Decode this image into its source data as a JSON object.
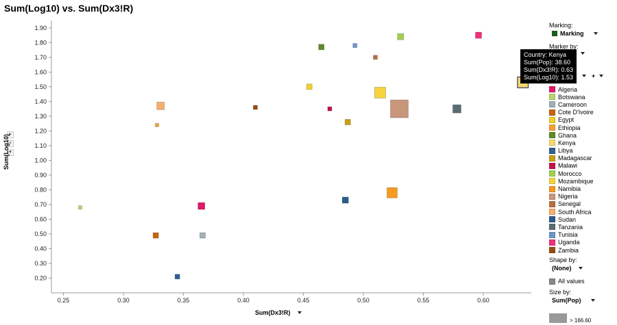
{
  "title": "Sum(Log10) vs. Sum(Dx3!R)",
  "y_axis_label": "Sum(Log10)",
  "x_axis_label": "Sum(Dx3!R)",
  "panel": {
    "marking_label": "Marking:",
    "marking_value": "Marking",
    "marking_color": "#1a5c1a",
    "marker_by_label": "Marker by:",
    "shape_by_label": "Shape by:",
    "shape_by_value": "(None)",
    "all_values_label": "All values",
    "size_by_label": "Size by:",
    "size_by_value": "Sum(Pop)",
    "size_range_label": "> 166.60"
  },
  "tooltip": {
    "country": "Country: Kenya",
    "pop": "Sum(Pop): 38.60",
    "dx": "Sum(Dx3!R): 0.63",
    "log": "Sum(Log10): 1.53"
  },
  "legend": [
    {
      "name": "Algeria",
      "color": "#e0196a"
    },
    {
      "name": "Botswana",
      "color": "#b6d86b"
    },
    {
      "name": "Cameroon",
      "color": "#9fb1b3"
    },
    {
      "name": "Cote D'Ivoire",
      "color": "#c8650e"
    },
    {
      "name": "Egypt",
      "color": "#f2d02a"
    },
    {
      "name": "Ethiopia",
      "color": "#f7a03a"
    },
    {
      "name": "Ghana",
      "color": "#5e8a26"
    },
    {
      "name": "Kenya",
      "color": "#f7d96b"
    },
    {
      "name": "Libya",
      "color": "#2f5f96"
    },
    {
      "name": "Madagascar",
      "color": "#c9a010"
    },
    {
      "name": "Malawi",
      "color": "#c8124a"
    },
    {
      "name": "Morocco",
      "color": "#a2d04e"
    },
    {
      "name": "Mozambique",
      "color": "#f7d33e"
    },
    {
      "name": "Namibia",
      "color": "#f79a21"
    },
    {
      "name": "Nigeria",
      "color": "#c8967a"
    },
    {
      "name": "Senegal",
      "color": "#b87040"
    },
    {
      "name": "South Africa",
      "color": "#f7b06b"
    },
    {
      "name": "Sudan",
      "color": "#2d5c8c"
    },
    {
      "name": "Tanzania",
      "color": "#5a6e72"
    },
    {
      "name": "Tunisia",
      "color": "#6a98c6"
    },
    {
      "name": "Uganda",
      "color": "#f0307a"
    },
    {
      "name": "Zambia",
      "color": "#9a4a10"
    }
  ],
  "chart_data": {
    "type": "scatter",
    "title": "Sum(Log10) vs. Sum(Dx3!R)",
    "xlabel": "Sum(Dx3!R)",
    "ylabel": "Sum(Log10)",
    "xlim": [
      0.24,
      0.64
    ],
    "ylim": [
      0.1,
      1.95
    ],
    "x_ticks": [
      0.25,
      0.3,
      0.35,
      0.4,
      0.45,
      0.5,
      0.55,
      0.6
    ],
    "y_ticks": [
      0.2,
      0.3,
      0.4,
      0.5,
      0.6,
      0.7,
      0.8,
      0.9,
      1.0,
      1.1,
      1.2,
      1.3,
      1.4,
      1.5,
      1.6,
      1.7,
      1.8,
      1.9
    ],
    "grid": false,
    "size_by": "Sum(Pop)",
    "points": [
      {
        "x": 0.264,
        "y": 0.68,
        "color": "#b6d86b",
        "size": 5
      },
      {
        "x": 0.328,
        "y": 1.24,
        "color": "#f7a03a",
        "size": 5
      },
      {
        "x": 0.331,
        "y": 1.37,
        "color": "#f7b06b",
        "size": 11
      },
      {
        "x": 0.327,
        "y": 0.49,
        "color": "#c8650e",
        "size": 8
      },
      {
        "x": 0.345,
        "y": 0.21,
        "color": "#2f5f96",
        "size": 7
      },
      {
        "x": 0.365,
        "y": 0.69,
        "color": "#e0196a",
        "size": 10
      },
      {
        "x": 0.366,
        "y": 0.49,
        "color": "#9fb1b3",
        "size": 8
      },
      {
        "x": 0.41,
        "y": 1.36,
        "color": "#9a4a10",
        "size": 6
      },
      {
        "x": 0.455,
        "y": 1.5,
        "color": "#f2d02a",
        "size": 8
      },
      {
        "x": 0.465,
        "y": 1.77,
        "color": "#5e8a26",
        "size": 8
      },
      {
        "x": 0.472,
        "y": 1.35,
        "color": "#c8124a",
        "size": 6
      },
      {
        "x": 0.487,
        "y": 1.26,
        "color": "#c9a010",
        "size": 8
      },
      {
        "x": 0.485,
        "y": 0.73,
        "color": "#2d5c8c",
        "size": 9
      },
      {
        "x": 0.493,
        "y": 1.78,
        "color": "#6a98c6",
        "size": 6
      },
      {
        "x": 0.51,
        "y": 1.7,
        "color": "#b87040",
        "size": 6
      },
      {
        "x": 0.514,
        "y": 1.46,
        "color": "#f7d33e",
        "size": 16
      },
      {
        "x": 0.524,
        "y": 0.78,
        "color": "#f79a21",
        "size": 15
      },
      {
        "x": 0.531,
        "y": 1.84,
        "color": "#a2d04e",
        "size": 9
      },
      {
        "x": 0.53,
        "y": 1.35,
        "color": "#c8967a",
        "size": 26
      },
      {
        "x": 0.578,
        "y": 1.35,
        "color": "#5a6e72",
        "size": 12
      },
      {
        "x": 0.596,
        "y": 1.85,
        "color": "#f0307a",
        "size": 9
      },
      {
        "x": 0.633,
        "y": 1.53,
        "color": "#f7d96b",
        "size": 14
      }
    ]
  }
}
